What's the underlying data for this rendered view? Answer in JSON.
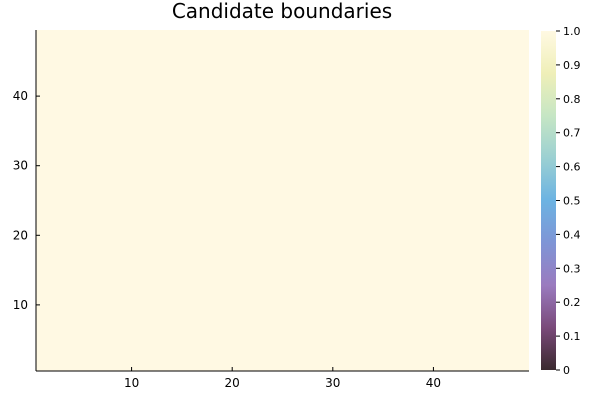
{
  "chart_data": {
    "type": "heatmap",
    "title": "Candidate boundaries",
    "xlabel": "",
    "ylabel": "",
    "xlim": [
      0.5,
      49.5
    ],
    "ylim": [
      0.5,
      49.5
    ],
    "x_ticks": [
      10,
      20,
      30,
      40
    ],
    "y_ticks": [
      10,
      20,
      30,
      40
    ],
    "uniform_value": 1.0,
    "grid": false,
    "colorbar": {
      "range": [
        0,
        1
      ],
      "ticks": [
        "0",
        "0.1",
        "0.2",
        "0.3",
        "0.4",
        "0.5",
        "0.6",
        "0.7",
        "0.8",
        "0.9",
        "1.0"
      ],
      "colors": [
        "#3b2a2f",
        "#7a4a7a",
        "#9a7bbf",
        "#7f95d6",
        "#6cb3e2",
        "#9bd0d2",
        "#c6e6c4",
        "#efefb8",
        "#fff9e3"
      ]
    }
  }
}
